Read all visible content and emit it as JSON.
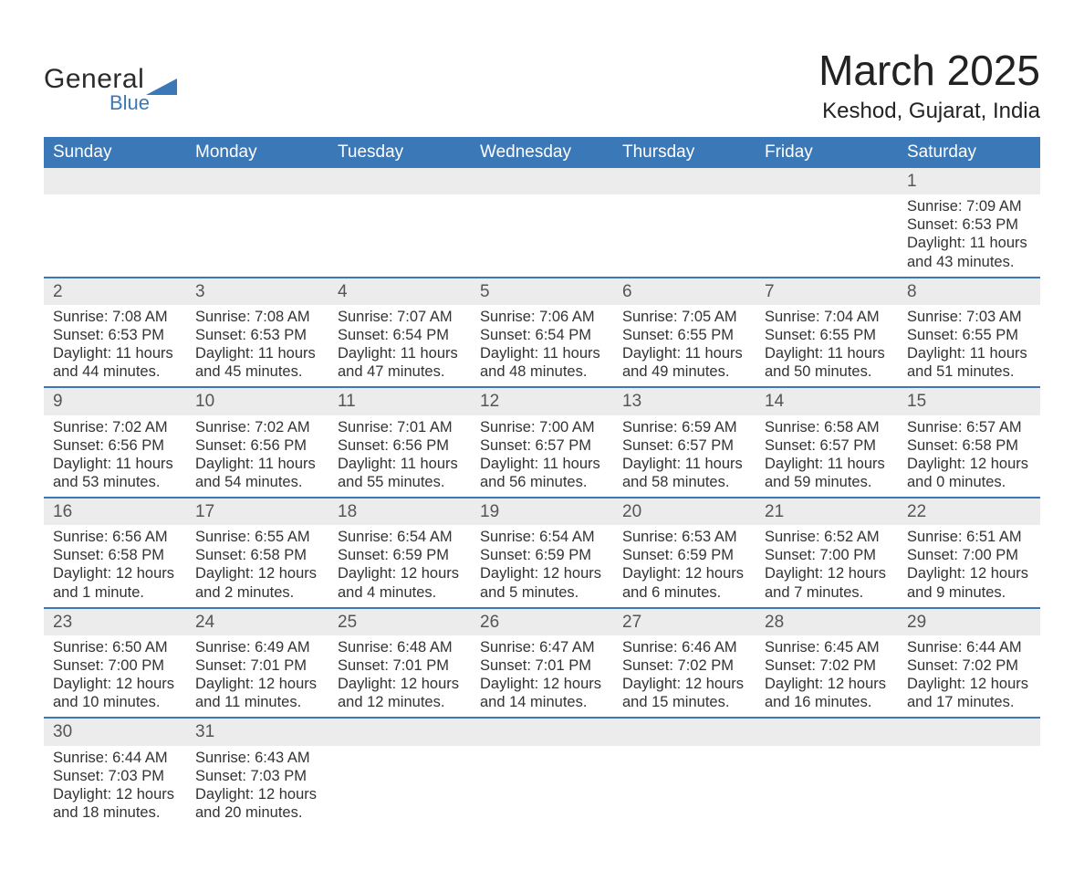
{
  "brand": {
    "line1": "General",
    "line2": "Blue",
    "accent_color": "#3b78b8"
  },
  "title": "March 2025",
  "location": "Keshod, Gujarat, India",
  "colors": {
    "header_bg": "#3b78b8",
    "header_text": "#ffffff",
    "date_row_bg": "#ececec",
    "row_border": "#3b78b8",
    "body_text": "#333333",
    "date_text": "#555555",
    "background": "#ffffff"
  },
  "font": {
    "family": "Arial",
    "header_size_pt": 14,
    "body_size_pt": 12,
    "title_size_pt": 34,
    "location_size_pt": 18
  },
  "days_of_week": [
    "Sunday",
    "Monday",
    "Tuesday",
    "Wednesday",
    "Thursday",
    "Friday",
    "Saturday"
  ],
  "weeks": [
    [
      null,
      null,
      null,
      null,
      null,
      null,
      {
        "date": "1",
        "sunrise": "Sunrise: 7:09 AM",
        "sunset": "Sunset: 6:53 PM",
        "daylight1": "Daylight: 11 hours",
        "daylight2": "and 43 minutes."
      }
    ],
    [
      {
        "date": "2",
        "sunrise": "Sunrise: 7:08 AM",
        "sunset": "Sunset: 6:53 PM",
        "daylight1": "Daylight: 11 hours",
        "daylight2": "and 44 minutes."
      },
      {
        "date": "3",
        "sunrise": "Sunrise: 7:08 AM",
        "sunset": "Sunset: 6:53 PM",
        "daylight1": "Daylight: 11 hours",
        "daylight2": "and 45 minutes."
      },
      {
        "date": "4",
        "sunrise": "Sunrise: 7:07 AM",
        "sunset": "Sunset: 6:54 PM",
        "daylight1": "Daylight: 11 hours",
        "daylight2": "and 47 minutes."
      },
      {
        "date": "5",
        "sunrise": "Sunrise: 7:06 AM",
        "sunset": "Sunset: 6:54 PM",
        "daylight1": "Daylight: 11 hours",
        "daylight2": "and 48 minutes."
      },
      {
        "date": "6",
        "sunrise": "Sunrise: 7:05 AM",
        "sunset": "Sunset: 6:55 PM",
        "daylight1": "Daylight: 11 hours",
        "daylight2": "and 49 minutes."
      },
      {
        "date": "7",
        "sunrise": "Sunrise: 7:04 AM",
        "sunset": "Sunset: 6:55 PM",
        "daylight1": "Daylight: 11 hours",
        "daylight2": "and 50 minutes."
      },
      {
        "date": "8",
        "sunrise": "Sunrise: 7:03 AM",
        "sunset": "Sunset: 6:55 PM",
        "daylight1": "Daylight: 11 hours",
        "daylight2": "and 51 minutes."
      }
    ],
    [
      {
        "date": "9",
        "sunrise": "Sunrise: 7:02 AM",
        "sunset": "Sunset: 6:56 PM",
        "daylight1": "Daylight: 11 hours",
        "daylight2": "and 53 minutes."
      },
      {
        "date": "10",
        "sunrise": "Sunrise: 7:02 AM",
        "sunset": "Sunset: 6:56 PM",
        "daylight1": "Daylight: 11 hours",
        "daylight2": "and 54 minutes."
      },
      {
        "date": "11",
        "sunrise": "Sunrise: 7:01 AM",
        "sunset": "Sunset: 6:56 PM",
        "daylight1": "Daylight: 11 hours",
        "daylight2": "and 55 minutes."
      },
      {
        "date": "12",
        "sunrise": "Sunrise: 7:00 AM",
        "sunset": "Sunset: 6:57 PM",
        "daylight1": "Daylight: 11 hours",
        "daylight2": "and 56 minutes."
      },
      {
        "date": "13",
        "sunrise": "Sunrise: 6:59 AM",
        "sunset": "Sunset: 6:57 PM",
        "daylight1": "Daylight: 11 hours",
        "daylight2": "and 58 minutes."
      },
      {
        "date": "14",
        "sunrise": "Sunrise: 6:58 AM",
        "sunset": "Sunset: 6:57 PM",
        "daylight1": "Daylight: 11 hours",
        "daylight2": "and 59 minutes."
      },
      {
        "date": "15",
        "sunrise": "Sunrise: 6:57 AM",
        "sunset": "Sunset: 6:58 PM",
        "daylight1": "Daylight: 12 hours",
        "daylight2": "and 0 minutes."
      }
    ],
    [
      {
        "date": "16",
        "sunrise": "Sunrise: 6:56 AM",
        "sunset": "Sunset: 6:58 PM",
        "daylight1": "Daylight: 12 hours",
        "daylight2": "and 1 minute."
      },
      {
        "date": "17",
        "sunrise": "Sunrise: 6:55 AM",
        "sunset": "Sunset: 6:58 PM",
        "daylight1": "Daylight: 12 hours",
        "daylight2": "and 2 minutes."
      },
      {
        "date": "18",
        "sunrise": "Sunrise: 6:54 AM",
        "sunset": "Sunset: 6:59 PM",
        "daylight1": "Daylight: 12 hours",
        "daylight2": "and 4 minutes."
      },
      {
        "date": "19",
        "sunrise": "Sunrise: 6:54 AM",
        "sunset": "Sunset: 6:59 PM",
        "daylight1": "Daylight: 12 hours",
        "daylight2": "and 5 minutes."
      },
      {
        "date": "20",
        "sunrise": "Sunrise: 6:53 AM",
        "sunset": "Sunset: 6:59 PM",
        "daylight1": "Daylight: 12 hours",
        "daylight2": "and 6 minutes."
      },
      {
        "date": "21",
        "sunrise": "Sunrise: 6:52 AM",
        "sunset": "Sunset: 7:00 PM",
        "daylight1": "Daylight: 12 hours",
        "daylight2": "and 7 minutes."
      },
      {
        "date": "22",
        "sunrise": "Sunrise: 6:51 AM",
        "sunset": "Sunset: 7:00 PM",
        "daylight1": "Daylight: 12 hours",
        "daylight2": "and 9 minutes."
      }
    ],
    [
      {
        "date": "23",
        "sunrise": "Sunrise: 6:50 AM",
        "sunset": "Sunset: 7:00 PM",
        "daylight1": "Daylight: 12 hours",
        "daylight2": "and 10 minutes."
      },
      {
        "date": "24",
        "sunrise": "Sunrise: 6:49 AM",
        "sunset": "Sunset: 7:01 PM",
        "daylight1": "Daylight: 12 hours",
        "daylight2": "and 11 minutes."
      },
      {
        "date": "25",
        "sunrise": "Sunrise: 6:48 AM",
        "sunset": "Sunset: 7:01 PM",
        "daylight1": "Daylight: 12 hours",
        "daylight2": "and 12 minutes."
      },
      {
        "date": "26",
        "sunrise": "Sunrise: 6:47 AM",
        "sunset": "Sunset: 7:01 PM",
        "daylight1": "Daylight: 12 hours",
        "daylight2": "and 14 minutes."
      },
      {
        "date": "27",
        "sunrise": "Sunrise: 6:46 AM",
        "sunset": "Sunset: 7:02 PM",
        "daylight1": "Daylight: 12 hours",
        "daylight2": "and 15 minutes."
      },
      {
        "date": "28",
        "sunrise": "Sunrise: 6:45 AM",
        "sunset": "Sunset: 7:02 PM",
        "daylight1": "Daylight: 12 hours",
        "daylight2": "and 16 minutes."
      },
      {
        "date": "29",
        "sunrise": "Sunrise: 6:44 AM",
        "sunset": "Sunset: 7:02 PM",
        "daylight1": "Daylight: 12 hours",
        "daylight2": "and 17 minutes."
      }
    ],
    [
      {
        "date": "30",
        "sunrise": "Sunrise: 6:44 AM",
        "sunset": "Sunset: 7:03 PM",
        "daylight1": "Daylight: 12 hours",
        "daylight2": "and 18 minutes."
      },
      {
        "date": "31",
        "sunrise": "Sunrise: 6:43 AM",
        "sunset": "Sunset: 7:03 PM",
        "daylight1": "Daylight: 12 hours",
        "daylight2": "and 20 minutes."
      },
      null,
      null,
      null,
      null,
      null
    ]
  ]
}
